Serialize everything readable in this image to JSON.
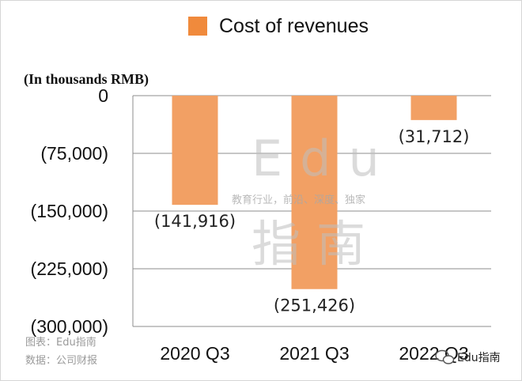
{
  "chart_data": {
    "type": "bar",
    "categories": [
      "2020 Q3",
      "2021 Q3",
      "2022 Q3"
    ],
    "series": [
      {
        "name": "Cost of revenues",
        "values": [
          -141916,
          -251426,
          -31712
        ],
        "color": "#f2a064"
      }
    ],
    "data_labels": [
      "(141,916)",
      "(251,426)",
      "(31,712)"
    ],
    "ylabel": "(In thousands RMB)",
    "ylim": [
      -300000,
      0
    ],
    "yticks": [
      0,
      -75000,
      -150000,
      -225000,
      -300000
    ],
    "ytick_labels": [
      "0",
      "(75,000)",
      "(150,000)",
      "(225,000)",
      "(300,000)"
    ],
    "grid": true,
    "legend": {
      "label": "Cost of revenues",
      "placement": "top-center",
      "swatch_color": "#f08a3c"
    }
  },
  "watermark": {
    "latin": "Edu",
    "chinese": "指南",
    "tagline": "教育行业，前沿、深度、独家"
  },
  "footnotes": {
    "chart_credit": "图表：Edu指南",
    "data_source": "数据：公司财报"
  },
  "brand": {
    "name": "Edu指南",
    "icon": "wechat-icon"
  }
}
